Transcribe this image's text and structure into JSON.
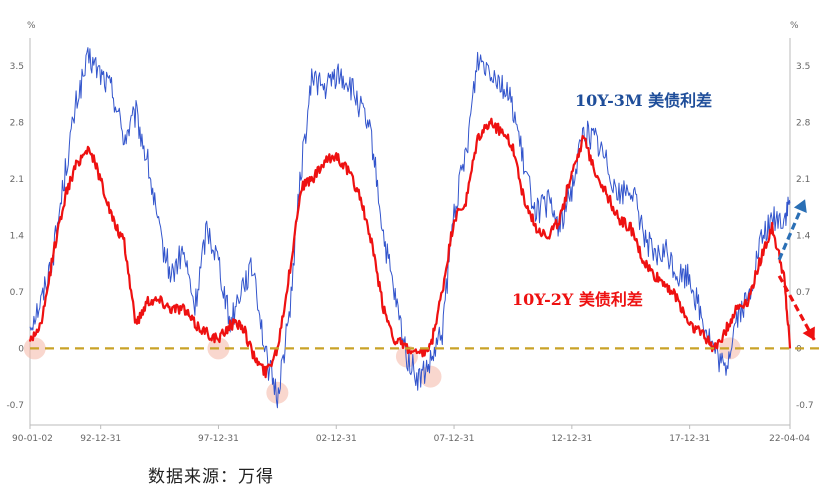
{
  "chart_data": {
    "type": "line",
    "unit_left": "%",
    "unit_right": "%",
    "y_ticks": [
      -0.7,
      0,
      0.7,
      1.4,
      2.1,
      2.8,
      3.5
    ],
    "y_tick_labels": [
      "-0.7",
      "0",
      "0.7",
      "1.4",
      "2.1",
      "2.8",
      "3.5"
    ],
    "ylim": [
      -0.95,
      3.85
    ],
    "xlim": [
      1990.0,
      2022.26
    ],
    "x_ticks": [
      1990.0,
      1993.0,
      1998.0,
      2003.0,
      2008.0,
      2013.0,
      2018.0,
      2022.26
    ],
    "x_tick_labels": [
      "90-01-02",
      "92-12-31",
      "97-12-31",
      "02-12-31",
      "07-12-31",
      "12-12-31",
      "17-12-31",
      "22-04-04"
    ],
    "zero_line_color": "#c9a227",
    "grid": false,
    "series": [
      {
        "name": "10Y-3M 美债利差",
        "color": "#3355cc",
        "x": [
          1990.0,
          1990.5,
          1991.0,
          1991.5,
          1992.0,
          1992.5,
          1993.0,
          1993.5,
          1994.0,
          1994.5,
          1995.0,
          1995.5,
          1996.0,
          1996.5,
          1997.0,
          1997.5,
          1998.0,
          1998.5,
          1999.0,
          1999.5,
          2000.0,
          2000.5,
          2001.0,
          2001.5,
          2002.0,
          2002.5,
          2003.0,
          2003.5,
          2004.0,
          2004.5,
          2005.0,
          2005.5,
          2006.0,
          2006.5,
          2007.0,
          2007.5,
          2008.0,
          2008.5,
          2009.0,
          2009.5,
          2010.0,
          2010.5,
          2011.0,
          2011.5,
          2012.0,
          2012.5,
          2013.0,
          2013.5,
          2014.0,
          2014.5,
          2015.0,
          2015.5,
          2016.0,
          2016.5,
          2017.0,
          2017.5,
          2018.0,
          2018.5,
          2019.0,
          2019.5,
          2020.0,
          2020.5,
          2021.0,
          2021.5,
          2022.0,
          2022.26
        ],
        "values": [
          0.3,
          0.6,
          1.2,
          2.2,
          3.1,
          3.6,
          3.4,
          3.2,
          2.6,
          2.9,
          2.3,
          1.4,
          0.9,
          1.2,
          0.5,
          1.5,
          1.1,
          0.3,
          0.8,
          1.0,
          -0.1,
          -0.6,
          0.4,
          2.2,
          3.4,
          3.2,
          3.4,
          3.3,
          3.0,
          2.6,
          1.4,
          0.6,
          -0.1,
          -0.4,
          -0.2,
          0.2,
          1.7,
          2.4,
          3.6,
          3.5,
          3.3,
          3.0,
          2.2,
          1.7,
          1.8,
          1.5,
          2.0,
          2.7,
          2.6,
          2.3,
          1.9,
          2.0,
          1.5,
          1.1,
          1.2,
          0.9,
          0.9,
          0.4,
          0.0,
          -0.3,
          0.4,
          0.6,
          1.3,
          1.6,
          1.6,
          1.8
        ]
      },
      {
        "name": "10Y-2Y 美债利差",
        "color": "#ee1111",
        "x": [
          1990.0,
          1990.5,
          1991.0,
          1991.5,
          1992.0,
          1992.5,
          1993.0,
          1993.5,
          1994.0,
          1994.5,
          1995.0,
          1995.5,
          1996.0,
          1996.5,
          1997.0,
          1997.5,
          1998.0,
          1998.5,
          1999.0,
          1999.5,
          2000.0,
          2000.5,
          2001.0,
          2001.5,
          2002.0,
          2002.5,
          2003.0,
          2003.5,
          2004.0,
          2004.5,
          2005.0,
          2005.5,
          2006.0,
          2006.5,
          2007.0,
          2007.5,
          2008.0,
          2008.5,
          2009.0,
          2009.5,
          2010.0,
          2010.5,
          2011.0,
          2011.5,
          2012.0,
          2012.5,
          2013.0,
          2013.5,
          2014.0,
          2014.5,
          2015.0,
          2015.5,
          2016.0,
          2016.5,
          2017.0,
          2017.5,
          2018.0,
          2018.5,
          2019.0,
          2019.5,
          2020.0,
          2020.5,
          2021.0,
          2021.5,
          2022.0,
          2022.26
        ],
        "values": [
          0.1,
          0.3,
          1.2,
          1.9,
          2.3,
          2.5,
          2.1,
          1.6,
          1.3,
          0.3,
          0.6,
          0.6,
          0.5,
          0.5,
          0.3,
          0.2,
          0.1,
          0.3,
          0.3,
          -0.1,
          -0.3,
          0.0,
          0.9,
          2.0,
          2.1,
          2.3,
          2.4,
          2.2,
          1.9,
          1.3,
          0.5,
          0.1,
          0.0,
          -0.1,
          0.0,
          0.7,
          1.6,
          1.8,
          2.6,
          2.8,
          2.7,
          2.5,
          1.8,
          1.5,
          1.4,
          1.6,
          2.2,
          2.6,
          2.2,
          1.9,
          1.6,
          1.5,
          1.1,
          0.9,
          0.8,
          0.6,
          0.3,
          0.2,
          0.0,
          0.2,
          0.5,
          0.6,
          1.1,
          1.5,
          0.9,
          0.0
        ]
      }
    ],
    "annotations": {
      "label_3m": "10Y-3M 美债利差",
      "label_2y": "10Y-2Y 美债利差"
    },
    "highlight_points": [
      {
        "x": 1990.2,
        "y": 0.0
      },
      {
        "x": 1998.0,
        "y": 0.0
      },
      {
        "x": 2000.5,
        "y": -0.55
      },
      {
        "x": 2006.0,
        "y": -0.1
      },
      {
        "x": 2007.0,
        "y": -0.35
      },
      {
        "x": 2019.7,
        "y": 0.0
      }
    ],
    "arrows": [
      {
        "direction": "up",
        "color": "#2a6fb5",
        "from": {
          "x": 2021.8,
          "y": 1.1
        },
        "to": {
          "x": 2022.9,
          "y": 1.85
        }
      },
      {
        "direction": "down",
        "color": "#ee1111",
        "from": {
          "x": 2021.8,
          "y": 0.9
        },
        "to": {
          "x": 2023.3,
          "y": 0.1
        }
      }
    ]
  },
  "source_text": "数据来源：万得"
}
